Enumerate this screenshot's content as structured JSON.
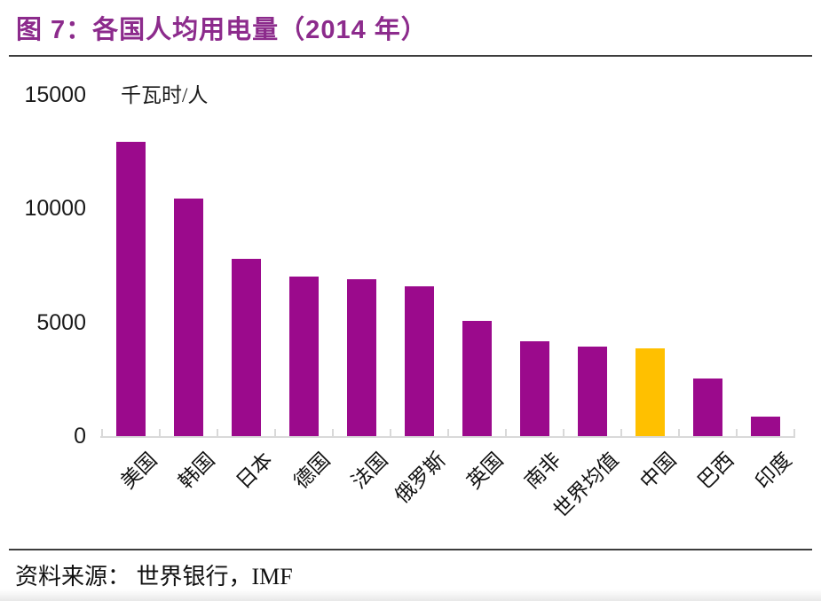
{
  "page": {
    "title": "图 7：各国人均用电量（2014 年）",
    "source": "资料来源：  世界银行，IMF"
  },
  "colors": {
    "title": "#8C2B8C",
    "bar": "#9B0A8C",
    "highlight": "#FFC000",
    "axis": "#D9D9D9",
    "divider": "#3D3D3D",
    "text": "#1A1A1A"
  },
  "chart_data": {
    "type": "bar",
    "title": "各国人均用电量（2014 年）",
    "unit_label": "千瓦时/人",
    "categories": [
      "美国",
      "韩国",
      "日本",
      "德国",
      "法国",
      "俄罗斯",
      "英国",
      "南非",
      "世界均值",
      "中国",
      "巴西",
      "印度"
    ],
    "values": [
      12950,
      10450,
      7800,
      7000,
      6900,
      6600,
      5050,
      4150,
      3950,
      3850,
      2550,
      850
    ],
    "highlight_category": "中国",
    "highlight_value": 3850,
    "xlabel": "",
    "ylabel": "千瓦时/人",
    "ylim": [
      0,
      15000
    ],
    "yticks": [
      0,
      5000,
      10000,
      15000
    ],
    "grid": false,
    "legend": false,
    "x_tick_label_rotation_deg": 45
  }
}
